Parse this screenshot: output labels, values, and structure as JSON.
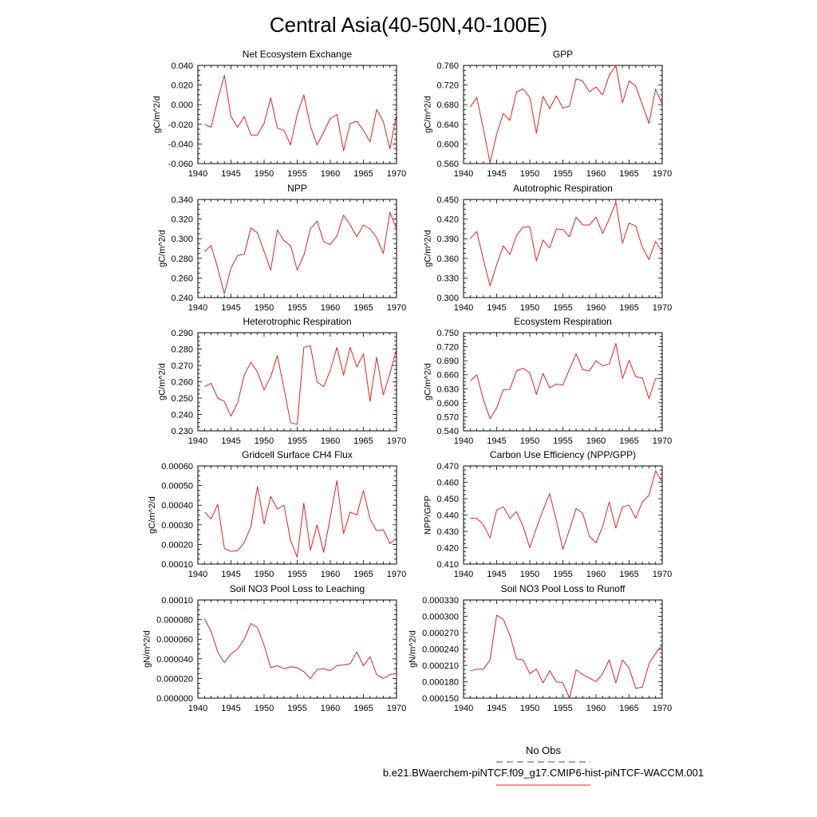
{
  "figure": {
    "title": "Central Asia(40-50N,40-100E)"
  },
  "legend": {
    "items": [
      {
        "label": "No Obs",
        "color": "#3c3cc8",
        "dashed": true
      },
      {
        "label": "b.e21.BWaerchem-piNTCF.f09_g17.CMIP6-hist-piNTCF-WACCM.001",
        "color": "#e62020",
        "dashed": false
      }
    ]
  },
  "chart_data": [
    {
      "type": "line",
      "title": "Net Ecosystem Exchange",
      "ylabel": "gC/m^2/d",
      "xlim": [
        1940,
        1970
      ],
      "ylim": [
        -0.06,
        0.04
      ],
      "x_ticks": [
        1940,
        1945,
        1950,
        1955,
        1960,
        1965,
        1970
      ],
      "y_ticks": [
        "-0.060",
        "-0.040",
        "-0.020",
        "0.000",
        "0.020",
        "0.040"
      ],
      "series": [
        {
          "color": "#e62020",
          "x": [
            1941,
            1942,
            1943,
            1944,
            1945,
            1946,
            1947,
            1948,
            1949,
            1950,
            1951,
            1952,
            1953,
            1954,
            1955,
            1956,
            1957,
            1958,
            1959,
            1960,
            1961,
            1962,
            1963,
            1964,
            1965,
            1966,
            1967,
            1968,
            1969,
            1970
          ],
          "y": [
            -0.02,
            -0.023,
            0.005,
            0.03,
            -0.012,
            -0.023,
            -0.012,
            -0.031,
            -0.031,
            -0.019,
            0.007,
            -0.024,
            -0.026,
            -0.041,
            -0.01,
            0.01,
            -0.022,
            -0.041,
            -0.028,
            -0.014,
            -0.01,
            -0.047,
            -0.019,
            -0.017,
            -0.026,
            -0.038,
            -0.005,
            -0.017,
            -0.045,
            -0.01
          ]
        }
      ]
    },
    {
      "type": "line",
      "title": "GPP",
      "ylabel": "gC/m^2/d",
      "xlim": [
        1940,
        1970
      ],
      "ylim": [
        0.56,
        0.76
      ],
      "x_ticks": [
        1940,
        1945,
        1950,
        1955,
        1960,
        1965,
        1970
      ],
      "y_ticks": [
        "0.560",
        "0.600",
        "0.640",
        "0.680",
        "0.720",
        "0.760"
      ],
      "series": [
        {
          "color": "#e62020",
          "x": [
            1941,
            1942,
            1943,
            1944,
            1945,
            1946,
            1947,
            1948,
            1949,
            1950,
            1951,
            1952,
            1953,
            1954,
            1955,
            1956,
            1957,
            1958,
            1959,
            1960,
            1961,
            1962,
            1963,
            1964,
            1965,
            1966,
            1967,
            1968,
            1969,
            1970
          ],
          "y": [
            0.675,
            0.695,
            0.63,
            0.562,
            0.62,
            0.662,
            0.648,
            0.706,
            0.712,
            0.695,
            0.622,
            0.697,
            0.672,
            0.698,
            0.673,
            0.677,
            0.733,
            0.728,
            0.706,
            0.716,
            0.7,
            0.74,
            0.76,
            0.684,
            0.728,
            0.718,
            0.68,
            0.642,
            0.712,
            0.68
          ]
        }
      ]
    },
    {
      "type": "line",
      "title": "NPP",
      "ylabel": "gC/m^2/d",
      "xlim": [
        1940,
        1970
      ],
      "ylim": [
        0.24,
        0.34
      ],
      "x_ticks": [
        1940,
        1945,
        1950,
        1955,
        1960,
        1965,
        1970
      ],
      "y_ticks": [
        "0.240",
        "0.260",
        "0.280",
        "0.300",
        "0.320",
        "0.340"
      ],
      "series": [
        {
          "color": "#e62020",
          "x": [
            1941,
            1942,
            1943,
            1944,
            1945,
            1946,
            1947,
            1948,
            1949,
            1950,
            1951,
            1952,
            1953,
            1954,
            1955,
            1956,
            1957,
            1958,
            1959,
            1960,
            1961,
            1962,
            1963,
            1964,
            1965,
            1966,
            1967,
            1968,
            1969,
            1970
          ],
          "y": [
            0.287,
            0.293,
            0.27,
            0.244,
            0.27,
            0.283,
            0.284,
            0.311,
            0.306,
            0.287,
            0.268,
            0.309,
            0.298,
            0.293,
            0.268,
            0.283,
            0.31,
            0.318,
            0.297,
            0.294,
            0.303,
            0.324,
            0.314,
            0.302,
            0.314,
            0.31,
            0.301,
            0.285,
            0.327,
            0.31
          ]
        }
      ]
    },
    {
      "type": "line",
      "title": "Autotrophic Respiration",
      "ylabel": "gC/m^2/d",
      "xlim": [
        1940,
        1970
      ],
      "ylim": [
        0.3,
        0.45
      ],
      "x_ticks": [
        1940,
        1945,
        1950,
        1955,
        1960,
        1965,
        1970
      ],
      "y_ticks": [
        "0.300",
        "0.330",
        "0.360",
        "0.390",
        "0.420",
        "0.450"
      ],
      "series": [
        {
          "color": "#e62020",
          "x": [
            1941,
            1942,
            1943,
            1944,
            1945,
            1946,
            1947,
            1948,
            1949,
            1950,
            1951,
            1952,
            1953,
            1954,
            1955,
            1956,
            1957,
            1958,
            1959,
            1960,
            1961,
            1962,
            1963,
            1964,
            1965,
            1966,
            1967,
            1968,
            1969,
            1970
          ],
          "y": [
            0.39,
            0.401,
            0.358,
            0.318,
            0.35,
            0.379,
            0.366,
            0.395,
            0.408,
            0.408,
            0.356,
            0.388,
            0.376,
            0.405,
            0.404,
            0.393,
            0.423,
            0.411,
            0.411,
            0.423,
            0.398,
            0.42,
            0.446,
            0.383,
            0.414,
            0.409,
            0.377,
            0.358,
            0.386,
            0.37
          ]
        }
      ]
    },
    {
      "type": "line",
      "title": "Heterotrophic Respiration",
      "ylabel": "gC/m^2/d",
      "xlim": [
        1940,
        1970
      ],
      "ylim": [
        0.23,
        0.29
      ],
      "x_ticks": [
        1940,
        1945,
        1950,
        1955,
        1960,
        1965,
        1970
      ],
      "y_ticks": [
        "0.230",
        "0.240",
        "0.250",
        "0.260",
        "0.270",
        "0.280",
        "0.290"
      ],
      "series": [
        {
          "color": "#e62020",
          "x": [
            1941,
            1942,
            1943,
            1944,
            1945,
            1946,
            1947,
            1948,
            1949,
            1950,
            1951,
            1952,
            1953,
            1954,
            1955,
            1956,
            1957,
            1958,
            1959,
            1960,
            1961,
            1962,
            1963,
            1964,
            1965,
            1966,
            1967,
            1968,
            1969,
            1970
          ],
          "y": [
            0.257,
            0.259,
            0.25,
            0.248,
            0.239,
            0.247,
            0.264,
            0.272,
            0.266,
            0.255,
            0.263,
            0.276,
            0.256,
            0.235,
            0.234,
            0.281,
            0.282,
            0.26,
            0.257,
            0.267,
            0.281,
            0.264,
            0.281,
            0.269,
            0.277,
            0.248,
            0.275,
            0.252,
            0.265,
            0.28
          ]
        }
      ]
    },
    {
      "type": "line",
      "title": "Ecosystem Respiration",
      "ylabel": "gC/m^2/d",
      "xlim": [
        1940,
        1970
      ],
      "ylim": [
        0.54,
        0.75
      ],
      "x_ticks": [
        1940,
        1945,
        1950,
        1955,
        1960,
        1965,
        1970
      ],
      "y_ticks": [
        "0.540",
        "0.570",
        "0.600",
        "0.630",
        "0.660",
        "0.690",
        "0.720",
        "0.750"
      ],
      "series": [
        {
          "color": "#e62020",
          "x": [
            1941,
            1942,
            1943,
            1944,
            1945,
            1946,
            1947,
            1948,
            1949,
            1950,
            1951,
            1952,
            1953,
            1954,
            1955,
            1956,
            1957,
            1958,
            1959,
            1960,
            1961,
            1962,
            1963,
            1964,
            1965,
            1966,
            1967,
            1968,
            1969,
            1970
          ],
          "y": [
            0.647,
            0.66,
            0.607,
            0.566,
            0.589,
            0.628,
            0.629,
            0.668,
            0.674,
            0.664,
            0.618,
            0.663,
            0.632,
            0.64,
            0.638,
            0.672,
            0.705,
            0.671,
            0.668,
            0.69,
            0.679,
            0.683,
            0.727,
            0.652,
            0.691,
            0.656,
            0.653,
            0.609,
            0.652,
            0.652
          ]
        }
      ]
    },
    {
      "type": "line",
      "title": "Gridcell Surface CH4 Flux",
      "ylabel": "gC/m^2/d",
      "xlim": [
        1940,
        1970
      ],
      "ylim": [
        0.0001,
        0.0006
      ],
      "x_ticks": [
        1940,
        1945,
        1950,
        1955,
        1960,
        1965,
        1970
      ],
      "y_ticks": [
        "0.00010",
        "0.00020",
        "0.00030",
        "0.00040",
        "0.00050",
        "0.00060"
      ],
      "series": [
        {
          "color": "#e62020",
          "x": [
            1941,
            1942,
            1943,
            1944,
            1945,
            1946,
            1947,
            1948,
            1949,
            1950,
            1951,
            1952,
            1953,
            1954,
            1955,
            1956,
            1957,
            1958,
            1959,
            1960,
            1961,
            1962,
            1963,
            1964,
            1965,
            1966,
            1967,
            1968,
            1969,
            1970
          ],
          "y": [
            0.000365,
            0.00033,
            0.000405,
            0.00018,
            0.000165,
            0.000168,
            0.00021,
            0.00029,
            0.000495,
            0.000305,
            0.000445,
            0.00038,
            0.0004,
            0.00022,
            0.000135,
            0.00041,
            0.00017,
            0.0003,
            0.00016,
            0.00034,
            0.000525,
            0.000255,
            0.000365,
            0.00035,
            0.000475,
            0.00033,
            0.00027,
            0.000275,
            0.000205,
            0.00023
          ]
        }
      ]
    },
    {
      "type": "line",
      "title": "Carbon Use Efficiency (NPP/GPP)",
      "ylabel": "NPP/GPP",
      "xlim": [
        1940,
        1970
      ],
      "ylim": [
        0.41,
        0.47
      ],
      "x_ticks": [
        1940,
        1945,
        1950,
        1955,
        1960,
        1965,
        1970
      ],
      "y_ticks": [
        "0.410",
        "0.420",
        "0.430",
        "0.440",
        "0.450",
        "0.460",
        "0.470"
      ],
      "series": [
        {
          "color": "#e62020",
          "x": [
            1941,
            1942,
            1943,
            1944,
            1945,
            1946,
            1947,
            1948,
            1949,
            1950,
            1951,
            1952,
            1953,
            1954,
            1955,
            1956,
            1957,
            1958,
            1959,
            1960,
            1961,
            1962,
            1963,
            1964,
            1965,
            1966,
            1967,
            1968,
            1969,
            1970
          ],
          "y": [
            0.438,
            0.438,
            0.434,
            0.426,
            0.443,
            0.445,
            0.438,
            0.442,
            0.433,
            0.42,
            0.432,
            0.443,
            0.453,
            0.437,
            0.419,
            0.431,
            0.444,
            0.441,
            0.427,
            0.423,
            0.433,
            0.448,
            0.432,
            0.445,
            0.446,
            0.438,
            0.448,
            0.452,
            0.467,
            0.46
          ]
        }
      ]
    },
    {
      "type": "line",
      "title": "Soil NO3 Pool Loss to Leaching",
      "ylabel": "gN/m^2/d",
      "xlim": [
        1940,
        1970
      ],
      "ylim": [
        0.0,
        0.0001
      ],
      "x_ticks": [
        1940,
        1945,
        1950,
        1955,
        1960,
        1965,
        1970
      ],
      "y_ticks": [
        "0.000000",
        "0.000020",
        "0.000040",
        "0.000060",
        "0.000080",
        "0.00010"
      ],
      "series": [
        {
          "color": "#e62020",
          "x": [
            1941,
            1942,
            1943,
            1944,
            1945,
            1946,
            1947,
            1948,
            1949,
            1950,
            1951,
            1952,
            1953,
            1954,
            1955,
            1956,
            1957,
            1958,
            1959,
            1960,
            1961,
            1962,
            1963,
            1964,
            1965,
            1966,
            1967,
            1968,
            1969,
            1970
          ],
          "y": [
            8.1e-05,
            6.8e-05,
            4.7e-05,
            3.6e-05,
            4.5e-05,
            5e-05,
            6e-05,
            7.6e-05,
            7.2e-05,
            5.4e-05,
            3.1e-05,
            3.3e-05,
            3e-05,
            3.2e-05,
            3.1e-05,
            2.7e-05,
            2e-05,
            2.9e-05,
            3e-05,
            2.8e-05,
            3.3e-05,
            3.4e-05,
            3.5e-05,
            4.7e-05,
            3.3e-05,
            4.2e-05,
            2.4e-05,
            2e-05,
            2.4e-05,
            2.5e-05
          ]
        }
      ]
    },
    {
      "type": "line",
      "title": "Soil NO3 Pool Loss to Runoff",
      "ylabel": "gN/m^2/d",
      "xlim": [
        1940,
        1970
      ],
      "ylim": [
        0.00015,
        0.00033
      ],
      "x_ticks": [
        1940,
        1945,
        1950,
        1955,
        1960,
        1965,
        1970
      ],
      "y_ticks": [
        "0.000150",
        "0.000180",
        "0.000210",
        "0.000240",
        "0.000270",
        "0.000300",
        "0.000330"
      ],
      "series": [
        {
          "color": "#e62020",
          "x": [
            1941,
            1942,
            1943,
            1944,
            1945,
            1946,
            1947,
            1948,
            1949,
            1950,
            1951,
            1952,
            1953,
            1954,
            1955,
            1956,
            1957,
            1958,
            1959,
            1960,
            1961,
            1962,
            1963,
            1964,
            1965,
            1966,
            1967,
            1968,
            1969,
            1970
          ],
          "y": [
            0.0002,
            0.000203,
            0.000203,
            0.00022,
            0.000302,
            0.000295,
            0.000265,
            0.000222,
            0.00022,
            0.000195,
            0.000203,
            0.000178,
            0.0002,
            0.00018,
            0.000178,
            0.00015,
            0.000202,
            0.000193,
            0.000187,
            0.00018,
            0.000195,
            0.00022,
            0.000178,
            0.00022,
            0.000205,
            0.000168,
            0.00017,
            0.000213,
            0.000232,
            0.000247
          ]
        }
      ]
    }
  ]
}
